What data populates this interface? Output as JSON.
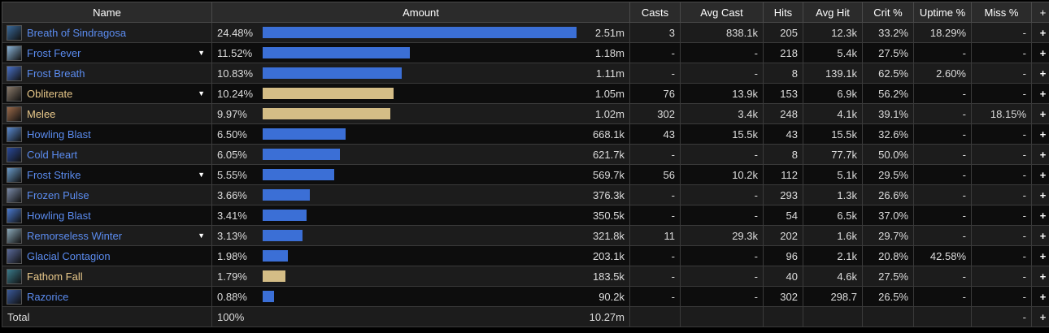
{
  "colors": {
    "spell_link": "#5b8cf0",
    "pet_link": "#e8c88a",
    "spell_bar": "#3b6fd6",
    "pet_bar": "#d4bd86"
  },
  "headers": {
    "name": "Name",
    "amount": "Amount",
    "casts": "Casts",
    "avg_cast": "Avg Cast",
    "hits": "Hits",
    "avg_hit": "Avg Hit",
    "crit": "Crit %",
    "uptime": "Uptime %",
    "miss": "Miss %",
    "plus": "+"
  },
  "rows": [
    {
      "name": "Breath of Sindragosa",
      "kind": "spell",
      "icon": "breath-of-sindragosa-icon",
      "icon_color": "#3a6a9a",
      "expandable": false,
      "pct": "24.48%",
      "fraction": 1.0,
      "amount": "2.51m",
      "casts": "3",
      "avg_cast": "838.1k",
      "hits": "205",
      "avg_hit": "12.3k",
      "crit": "33.2%",
      "uptime": "18.29%",
      "miss": "-",
      "plus": "+"
    },
    {
      "name": "Frost Fever",
      "kind": "spell",
      "icon": "frost-fever-icon",
      "icon_color": "#8ab4d8",
      "expandable": true,
      "pct": "11.52%",
      "fraction": 0.47,
      "amount": "1.18m",
      "casts": "-",
      "avg_cast": "-",
      "hits": "218",
      "avg_hit": "5.4k",
      "crit": "27.5%",
      "uptime": "-",
      "miss": "-",
      "plus": "+"
    },
    {
      "name": "Frost Breath",
      "kind": "spell",
      "icon": "frost-breath-icon",
      "icon_color": "#4a72c8",
      "expandable": false,
      "pct": "10.83%",
      "fraction": 0.442,
      "amount": "1.11m",
      "casts": "-",
      "avg_cast": "-",
      "hits": "8",
      "avg_hit": "139.1k",
      "crit": "62.5%",
      "uptime": "2.60%",
      "miss": "-",
      "plus": "+"
    },
    {
      "name": "Obliterate",
      "kind": "pet",
      "icon": "obliterate-icon",
      "icon_color": "#8a7a6a",
      "expandable": true,
      "pct": "10.24%",
      "fraction": 0.418,
      "amount": "1.05m",
      "casts": "76",
      "avg_cast": "13.9k",
      "hits": "153",
      "avg_hit": "6.9k",
      "crit": "56.2%",
      "uptime": "-",
      "miss": "-",
      "plus": "+"
    },
    {
      "name": "Melee",
      "kind": "pet",
      "icon": "melee-icon",
      "icon_color": "#9a6a4a",
      "expandable": false,
      "pct": "9.97%",
      "fraction": 0.407,
      "amount": "1.02m",
      "casts": "302",
      "avg_cast": "3.4k",
      "hits": "248",
      "avg_hit": "4.1k",
      "crit": "39.1%",
      "uptime": "-",
      "miss": "18.15%",
      "plus": "+"
    },
    {
      "name": "Howling Blast",
      "kind": "spell",
      "icon": "howling-blast-icon",
      "icon_color": "#5a8ad0",
      "expandable": false,
      "pct": "6.50%",
      "fraction": 0.265,
      "amount": "668.1k",
      "casts": "43",
      "avg_cast": "15.5k",
      "hits": "43",
      "avg_hit": "15.5k",
      "crit": "32.6%",
      "uptime": "-",
      "miss": "-",
      "plus": "+"
    },
    {
      "name": "Cold Heart",
      "kind": "spell",
      "icon": "cold-heart-icon",
      "icon_color": "#2a4a9a",
      "expandable": false,
      "pct": "6.05%",
      "fraction": 0.247,
      "amount": "621.7k",
      "casts": "-",
      "avg_cast": "-",
      "hits": "8",
      "avg_hit": "77.7k",
      "crit": "50.0%",
      "uptime": "-",
      "miss": "-",
      "plus": "+"
    },
    {
      "name": "Frost Strike",
      "kind": "spell",
      "icon": "frost-strike-icon",
      "icon_color": "#6a9ac8",
      "expandable": true,
      "pct": "5.55%",
      "fraction": 0.227,
      "amount": "569.7k",
      "casts": "56",
      "avg_cast": "10.2k",
      "hits": "112",
      "avg_hit": "5.1k",
      "crit": "29.5%",
      "uptime": "-",
      "miss": "-",
      "plus": "+"
    },
    {
      "name": "Frozen Pulse",
      "kind": "spell",
      "icon": "frozen-pulse-icon",
      "icon_color": "#7a8aa8",
      "expandable": false,
      "pct": "3.66%",
      "fraction": 0.15,
      "amount": "376.3k",
      "casts": "-",
      "avg_cast": "-",
      "hits": "293",
      "avg_hit": "1.3k",
      "crit": "26.6%",
      "uptime": "-",
      "miss": "-",
      "plus": "+"
    },
    {
      "name": "Howling Blast",
      "kind": "spell",
      "icon": "howling-blast-icon",
      "icon_color": "#4a7ad0",
      "expandable": false,
      "pct": "3.41%",
      "fraction": 0.139,
      "amount": "350.5k",
      "casts": "-",
      "avg_cast": "-",
      "hits": "54",
      "avg_hit": "6.5k",
      "crit": "37.0%",
      "uptime": "-",
      "miss": "-",
      "plus": "+"
    },
    {
      "name": "Remorseless Winter",
      "kind": "spell",
      "icon": "remorseless-winter-icon",
      "icon_color": "#8aa8b8",
      "expandable": true,
      "pct": "3.13%",
      "fraction": 0.128,
      "amount": "321.8k",
      "casts": "11",
      "avg_cast": "29.3k",
      "hits": "202",
      "avg_hit": "1.6k",
      "crit": "29.7%",
      "uptime": "-",
      "miss": "-",
      "plus": "+"
    },
    {
      "name": "Glacial Contagion",
      "kind": "spell",
      "icon": "glacial-contagion-icon",
      "icon_color": "#5a6a9a",
      "expandable": false,
      "pct": "1.98%",
      "fraction": 0.081,
      "amount": "203.1k",
      "casts": "-",
      "avg_cast": "-",
      "hits": "96",
      "avg_hit": "2.1k",
      "crit": "20.8%",
      "uptime": "42.58%",
      "miss": "-",
      "plus": "+"
    },
    {
      "name": "Fathom Fall",
      "kind": "pet",
      "icon": "fathom-fall-icon",
      "icon_color": "#3a7a8a",
      "expandable": false,
      "pct": "1.79%",
      "fraction": 0.073,
      "amount": "183.5k",
      "casts": "-",
      "avg_cast": "-",
      "hits": "40",
      "avg_hit": "4.6k",
      "crit": "27.5%",
      "uptime": "-",
      "miss": "-",
      "plus": "+"
    },
    {
      "name": "Razorice",
      "kind": "spell",
      "icon": "razorice-icon",
      "icon_color": "#3a5a9a",
      "expandable": false,
      "pct": "0.88%",
      "fraction": 0.036,
      "amount": "90.2k",
      "casts": "-",
      "avg_cast": "-",
      "hits": "302",
      "avg_hit": "298.7",
      "crit": "26.5%",
      "uptime": "-",
      "miss": "-",
      "plus": "+"
    }
  ],
  "total": {
    "label": "Total",
    "pct": "100%",
    "amount": "10.27m",
    "miss": "-",
    "plus": "+"
  }
}
